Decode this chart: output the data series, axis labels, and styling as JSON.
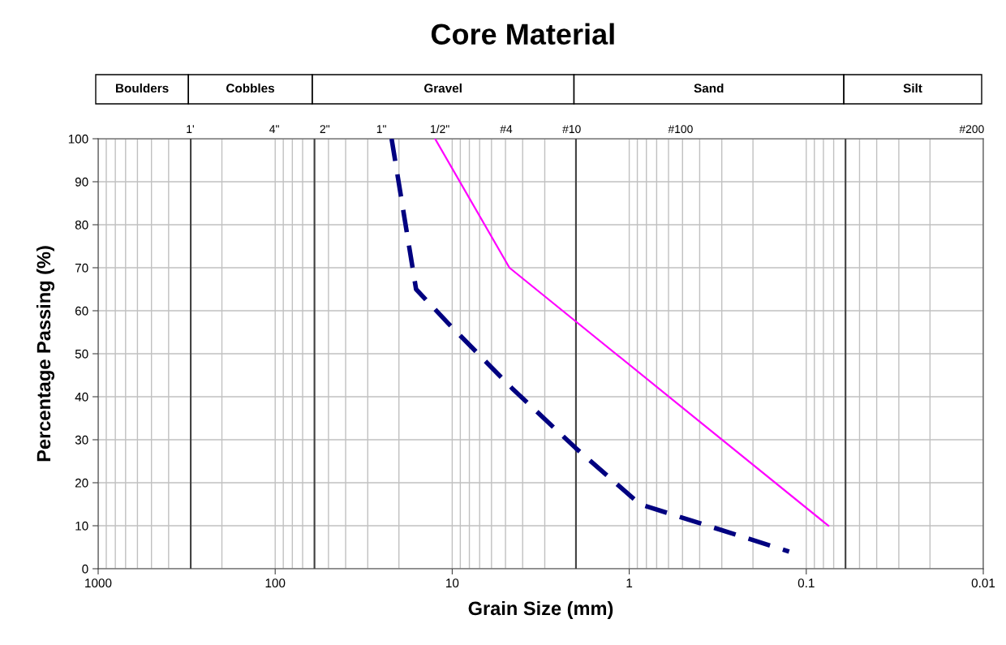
{
  "chart_data": {
    "type": "line",
    "title": "Core Material",
    "xlabel": "Grain Size (mm)",
    "ylabel": "Percentage Passing (%)",
    "log": "x",
    "series": [
      {
        "x": [
          22,
          16,
          10.5,
          4.6,
          2.0,
          0.87,
          0.125
        ],
        "values": [
          100,
          65,
          57,
          42,
          28,
          15,
          4
        ],
        "color": "#000080",
        "line_style": "dashed"
      },
      {
        "x": [
          12.5,
          4.75,
          0.075
        ],
        "values": [
          100,
          70,
          10
        ],
        "color": "#ff00ff",
        "line_style": "solid"
      }
    ],
    "xlim": [
      1000,
      0.01
    ],
    "xticks": [
      1000,
      100,
      10,
      1,
      0.1,
      0.01
    ],
    "ylim": [
      0,
      100
    ],
    "yticks": [
      0,
      10,
      20,
      30,
      40,
      50,
      60,
      70,
      80,
      90,
      100
    ],
    "annotations": [
      "Boulders",
      "Cobbles",
      "Gravel",
      "Sand",
      "Silt",
      "1'",
      "4\"",
      "2\"",
      "1\"",
      "1/2\"",
      "#4",
      "#10",
      "#100",
      "#200"
    ],
    "ref_lines": [
      {
        "axis": "x",
        "value": 300,
        "label": null,
        "color": "#404040"
      },
      {
        "axis": "x",
        "value": 60,
        "label": null,
        "color": "#404040"
      },
      {
        "axis": "x",
        "value": 2,
        "label": null,
        "color": "#404040"
      },
      {
        "axis": "x",
        "value": 0.06,
        "label": null,
        "color": "#404040"
      }
    ],
    "grid": true,
    "marker": "none"
  }
}
